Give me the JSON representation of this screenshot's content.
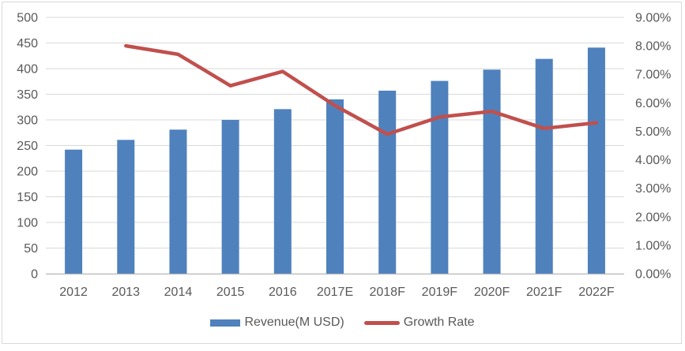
{
  "chart_data": {
    "type": "bar",
    "subtype": "combo-bar-line",
    "title": "",
    "categories": [
      "2012",
      "2013",
      "2014",
      "2015",
      "2016",
      "2017E",
      "2018F",
      "2019F",
      "2020F",
      "2021F",
      "2022F"
    ],
    "series": [
      {
        "name": "Revenue(M USD)",
        "type": "bar",
        "axis": "left",
        "color": "#4F81BD",
        "values": [
          242,
          261,
          281,
          300,
          321,
          340,
          357,
          376,
          398,
          419,
          441
        ]
      },
      {
        "name": "Growth Rate",
        "type": "line",
        "axis": "right",
        "color": "#C0504D",
        "values": [
          null,
          8.0,
          7.7,
          6.6,
          7.1,
          5.9,
          4.9,
          5.5,
          5.7,
          5.1,
          5.3
        ]
      }
    ],
    "left_axis": {
      "min": 0,
      "max": 500,
      "step": 50,
      "tick_labels": [
        "0",
        "50",
        "100",
        "150",
        "200",
        "250",
        "300",
        "350",
        "400",
        "450",
        "500"
      ]
    },
    "right_axis": {
      "min": 0,
      "max": 9,
      "step": 1,
      "tick_labels": [
        "0.00%",
        "1.00%",
        "2.00%",
        "3.00%",
        "4.00%",
        "5.00%",
        "6.00%",
        "7.00%",
        "8.00%",
        "9.00%"
      ]
    },
    "grid": true,
    "legend_position": "bottom",
    "colors": {
      "grid": "#D9D9D9",
      "axis_line": "#BFBFBF",
      "tick_text": "#595959",
      "frame_border": "#D9D9D9",
      "background": "#FFFFFF"
    }
  }
}
